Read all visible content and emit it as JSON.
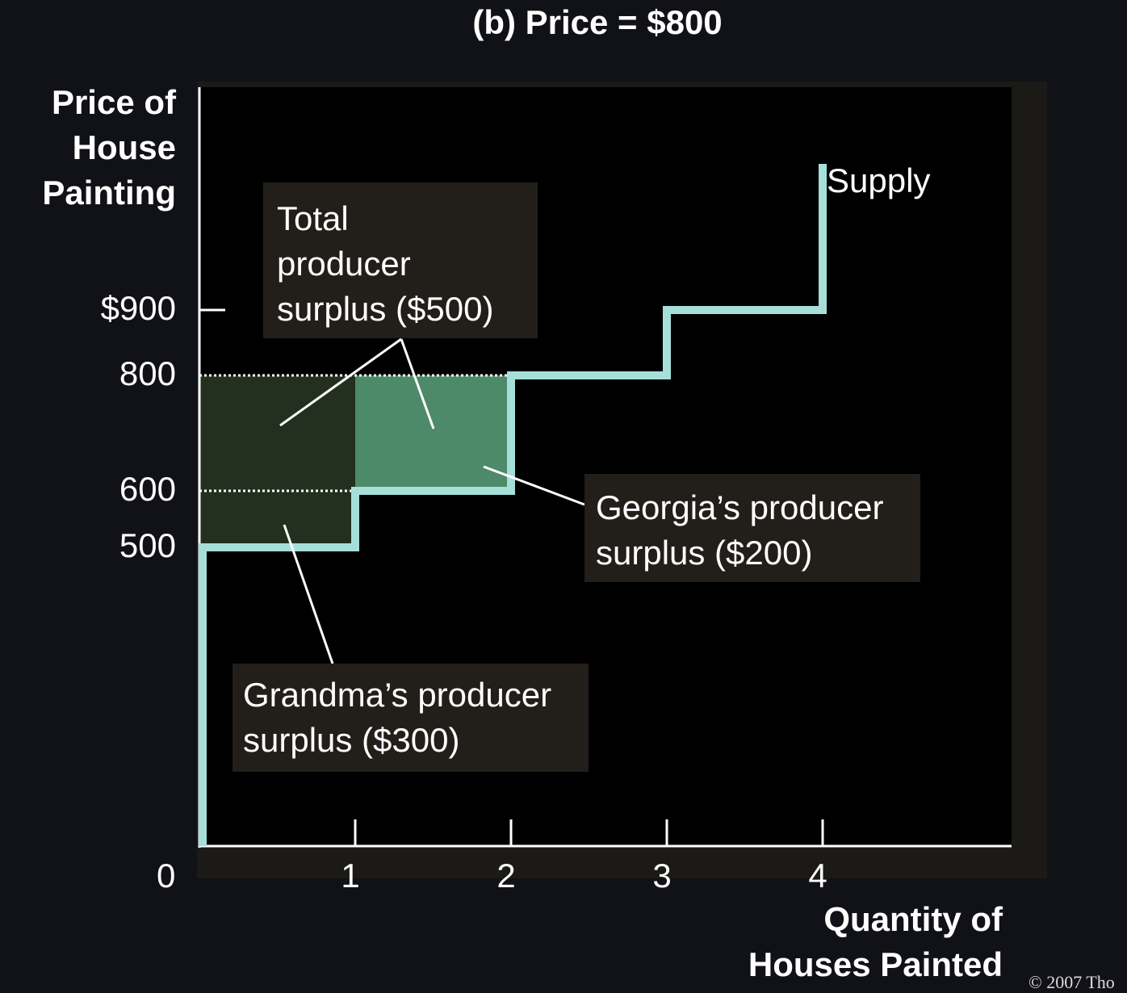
{
  "chart_data": {
    "type": "line",
    "title": "(b) Price = $800",
    "ylabel": [
      "Price of",
      "House",
      "Painting"
    ],
    "xlabel": [
      "Quantity of",
      "Houses Painted"
    ],
    "origin_label": "0",
    "xlim": [
      0,
      5.2
    ],
    "ylim": [
      0,
      1300
    ],
    "x_ticks": [
      {
        "value": 1,
        "label": "1"
      },
      {
        "value": 2,
        "label": "2"
      },
      {
        "value": 3,
        "label": "3"
      },
      {
        "value": 4,
        "label": "4"
      }
    ],
    "y_ticks": [
      {
        "value": 900,
        "label": "$900"
      },
      {
        "value": 800,
        "label": "800"
      },
      {
        "value": 600,
        "label": "600"
      },
      {
        "value": 500,
        "label": "500"
      }
    ],
    "series": [
      {
        "name": "Supply",
        "color": "#a6dfd9",
        "x": [
          0,
          0,
          1,
          1,
          2,
          2,
          3,
          3,
          4,
          4
        ],
        "y": [
          0,
          500,
          500,
          600,
          600,
          800,
          800,
          900,
          900,
          1100
        ]
      }
    ],
    "price_line": 800,
    "shaded_regions": [
      {
        "name": "Grandma's producer surplus",
        "x": [
          0,
          1
        ],
        "y": [
          500,
          800
        ],
        "color": "#24301f"
      },
      {
        "name": "Georgia's producer surplus",
        "x": [
          1,
          2
        ],
        "y": [
          600,
          800
        ],
        "color": "#4d8a6a"
      }
    ],
    "annotations": [
      {
        "lines": [
          "Total",
          "producer",
          "surplus ($500)"
        ],
        "value": 500
      },
      {
        "lines": [
          "Georgia’s producer",
          "surplus ($200)"
        ],
        "value": 200
      },
      {
        "lines": [
          "Grandma’s producer",
          "surplus ($300)"
        ],
        "value": 300
      }
    ]
  },
  "copyright": "© 2007 Tho"
}
